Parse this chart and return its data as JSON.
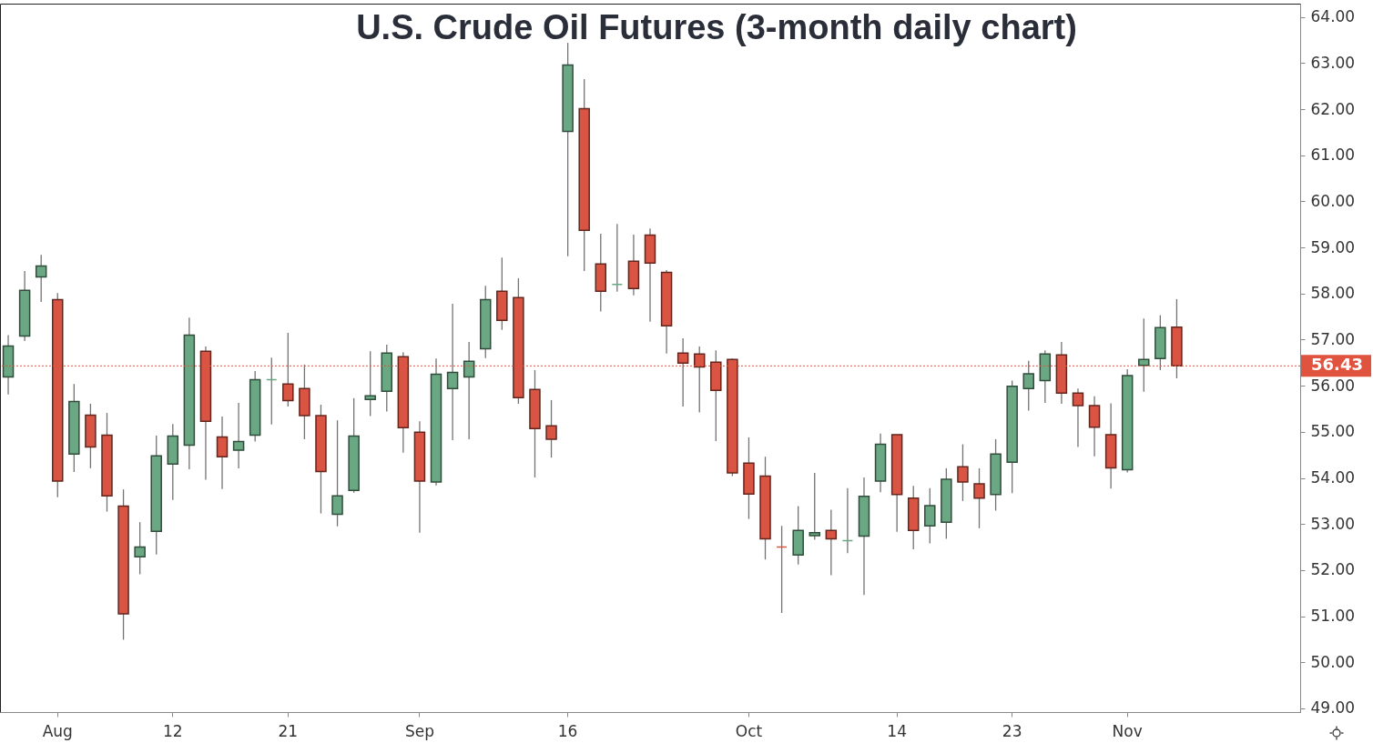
{
  "chart_data": {
    "type": "candlestick",
    "title": "U.S. Crude Oil Futures (3-month daily chart)",
    "categories": [
      null,
      null,
      null,
      "Aug",
      null,
      null,
      null,
      null,
      null,
      null,
      "12",
      null,
      null,
      null,
      null,
      null,
      null,
      "21",
      null,
      null,
      null,
      null,
      null,
      null,
      null,
      "Sep",
      null,
      null,
      null,
      null,
      null,
      null,
      null,
      null,
      "16",
      null,
      null,
      null,
      null,
      null,
      null,
      null,
      null,
      null,
      null,
      "Oct",
      null,
      null,
      null,
      null,
      null,
      null,
      null,
      null,
      "14",
      null,
      null,
      null,
      null,
      null,
      null,
      "23",
      null,
      null,
      null,
      null,
      null,
      null,
      "Nov",
      null,
      null,
      null,
      null,
      null,
      null,
      null,
      null,
      null,
      null
    ],
    "ohlc": [
      [
        56.19,
        57.1,
        55.81,
        56.86
      ],
      [
        57.08,
        58.49,
        56.97,
        58.07
      ],
      [
        58.36,
        58.84,
        57.82,
        58.6
      ],
      [
        57.87,
        58.01,
        53.58,
        53.93
      ],
      [
        54.52,
        56.04,
        54.13,
        55.66
      ],
      [
        55.36,
        55.61,
        54.21,
        54.67
      ],
      [
        54.93,
        55.41,
        53.27,
        53.61
      ],
      [
        53.39,
        53.75,
        50.49,
        51.05
      ],
      [
        52.29,
        53.04,
        51.91,
        52.5
      ],
      [
        52.84,
        54.92,
        52.34,
        54.48
      ],
      [
        54.3,
        55.17,
        53.52,
        54.91
      ],
      [
        54.71,
        57.48,
        54.19,
        57.1
      ],
      [
        56.75,
        56.85,
        53.96,
        55.23
      ],
      [
        54.89,
        55.33,
        53.76,
        54.46
      ],
      [
        54.6,
        55.63,
        54.21,
        54.79
      ],
      [
        54.93,
        56.32,
        54.79,
        56.13
      ],
      [
        56.13,
        56.61,
        55.16,
        56.13
      ],
      [
        56.04,
        57.15,
        55.55,
        55.68
      ],
      [
        55.94,
        56.46,
        54.84,
        55.35
      ],
      [
        55.35,
        55.59,
        53.23,
        54.14
      ],
      [
        53.21,
        55.25,
        52.95,
        53.61
      ],
      [
        53.73,
        55.73,
        53.68,
        54.91
      ],
      [
        55.7,
        56.75,
        55.34,
        55.78
      ],
      [
        55.88,
        56.89,
        55.44,
        56.71
      ],
      [
        56.63,
        56.73,
        54.55,
        55.09
      ],
      [
        54.99,
        55.23,
        52.81,
        53.93
      ],
      [
        53.91,
        56.59,
        53.84,
        56.25
      ],
      [
        55.94,
        57.78,
        54.82,
        56.29
      ],
      [
        56.19,
        56.95,
        54.84,
        56.53
      ],
      [
        56.8,
        58.17,
        56.6,
        57.87
      ],
      [
        58.05,
        58.78,
        57.21,
        57.42
      ],
      [
        57.91,
        58.33,
        55.61,
        55.74
      ],
      [
        55.92,
        56.34,
        54.01,
        55.07
      ],
      [
        55.13,
        55.69,
        54.44,
        54.84
      ],
      [
        61.52,
        63.44,
        58.81,
        62.96
      ],
      [
        62.01,
        62.65,
        58.49,
        59.37
      ],
      [
        58.64,
        59.3,
        57.61,
        58.05
      ],
      [
        58.2,
        59.51,
        58.04,
        58.2
      ],
      [
        58.7,
        59.28,
        57.96,
        58.11
      ],
      [
        59.27,
        59.41,
        57.39,
        58.66
      ],
      [
        58.46,
        58.51,
        56.7,
        57.3
      ],
      [
        56.71,
        57.03,
        55.55,
        56.49
      ],
      [
        56.69,
        56.85,
        55.42,
        56.41
      ],
      [
        56.51,
        56.77,
        54.8,
        55.9
      ],
      [
        56.57,
        56.59,
        54.04,
        54.11
      ],
      [
        54.32,
        54.88,
        53.11,
        53.65
      ],
      [
        54.04,
        54.46,
        52.23,
        52.68
      ],
      [
        52.5,
        52.96,
        51.07,
        52.5
      ],
      [
        52.33,
        53.39,
        52.12,
        52.86
      ],
      [
        52.75,
        54.11,
        52.66,
        52.81
      ],
      [
        52.86,
        53.31,
        51.89,
        52.68
      ],
      [
        52.64,
        53.78,
        52.37,
        52.64
      ],
      [
        52.74,
        54.01,
        51.46,
        53.6
      ],
      [
        53.93,
        54.96,
        53.69,
        54.73
      ],
      [
        54.94,
        54.94,
        52.83,
        53.64
      ],
      [
        53.56,
        53.83,
        52.45,
        52.86
      ],
      [
        52.96,
        53.78,
        52.58,
        53.4
      ],
      [
        53.04,
        54.21,
        52.68,
        53.97
      ],
      [
        54.24,
        54.73,
        53.5,
        53.91
      ],
      [
        53.87,
        54.21,
        52.91,
        53.56
      ],
      [
        53.64,
        54.84,
        53.29,
        54.52
      ],
      [
        54.34,
        56.11,
        53.67,
        55.99
      ],
      [
        55.94,
        56.54,
        55.46,
        56.26
      ],
      [
        56.11,
        56.77,
        55.63,
        56.69
      ],
      [
        56.67,
        56.95,
        55.61,
        55.84
      ],
      [
        55.84,
        55.94,
        54.67,
        55.57
      ],
      [
        55.57,
        55.77,
        54.47,
        55.1
      ],
      [
        54.94,
        55.62,
        53.77,
        54.22
      ],
      [
        54.18,
        56.36,
        54.12,
        56.22
      ],
      [
        56.44,
        57.46,
        55.87,
        56.57
      ],
      [
        56.59,
        57.53,
        56.34,
        57.26
      ],
      [
        57.27,
        57.88,
        56.16,
        56.43
      ],
      null,
      null,
      null,
      null,
      null,
      null,
      null
    ],
    "colors": [
      "#6aa884",
      "#6aa884",
      "#6aa884",
      "#d95443",
      "#6aa884",
      "#d95443",
      "#d95443",
      "#d95443",
      "#6aa884",
      "#6aa884",
      "#6aa884",
      "#6aa884",
      "#d95443",
      "#d95443",
      "#6aa884",
      "#6aa884",
      "#6aa884",
      "#d95443",
      "#d95443",
      "#d95443",
      "#6aa884",
      "#6aa884",
      "#6aa884",
      "#6aa884",
      "#d95443",
      "#d95443",
      "#6aa884",
      "#6aa884",
      "#6aa884",
      "#6aa884",
      "#d95443",
      "#d95443",
      "#d95443",
      "#d95443",
      "#6aa884",
      "#d95443",
      "#d95443",
      "#6aa884",
      "#d95443",
      "#d95443",
      "#d95443",
      "#d95443",
      "#d95443",
      "#d95443",
      "#d95443",
      "#d95443",
      "#d95443",
      "#d95443",
      "#6aa884",
      "#6aa884",
      "#d95443",
      "#6aa884",
      "#6aa884",
      "#6aa884",
      "#d95443",
      "#d95443",
      "#6aa884",
      "#6aa884",
      "#d95443",
      "#d95443",
      "#6aa884",
      "#6aa884",
      "#6aa884",
      "#6aa884",
      "#d95443",
      "#d95443",
      "#d95443",
      "#d95443",
      "#6aa884",
      "#6aa884",
      "#6aa884",
      "#d95443",
      null,
      null,
      null,
      null,
      null,
      null,
      null
    ],
    "ylim": [
      48.92,
      64.29
    ],
    "yticks": [
      {
        "value": 49,
        "label": "49.00"
      },
      {
        "value": 50,
        "label": "50.00"
      },
      {
        "value": 51,
        "label": "51.00"
      },
      {
        "value": 52,
        "label": "52.00"
      },
      {
        "value": 53,
        "label": "53.00"
      },
      {
        "value": 54,
        "label": "54.00"
      },
      {
        "value": 55,
        "label": "55.00"
      },
      {
        "value": 56,
        "label": "56.00"
      },
      {
        "value": 57,
        "label": "57.00"
      },
      {
        "value": 58,
        "label": "58.00"
      },
      {
        "value": 59,
        "label": "59.00"
      },
      {
        "value": 60,
        "label": "60.00"
      },
      {
        "value": 61,
        "label": "61.00"
      },
      {
        "value": 62,
        "label": "62.00"
      },
      {
        "value": 63,
        "label": "63.00"
      },
      {
        "value": 64,
        "label": "64.00"
      }
    ],
    "ref_lines": [
      {
        "axis": "y",
        "value": 56.43,
        "label": "56.43",
        "color": "#e0533f",
        "line_style": "dotted"
      }
    ],
    "grid": false
  }
}
